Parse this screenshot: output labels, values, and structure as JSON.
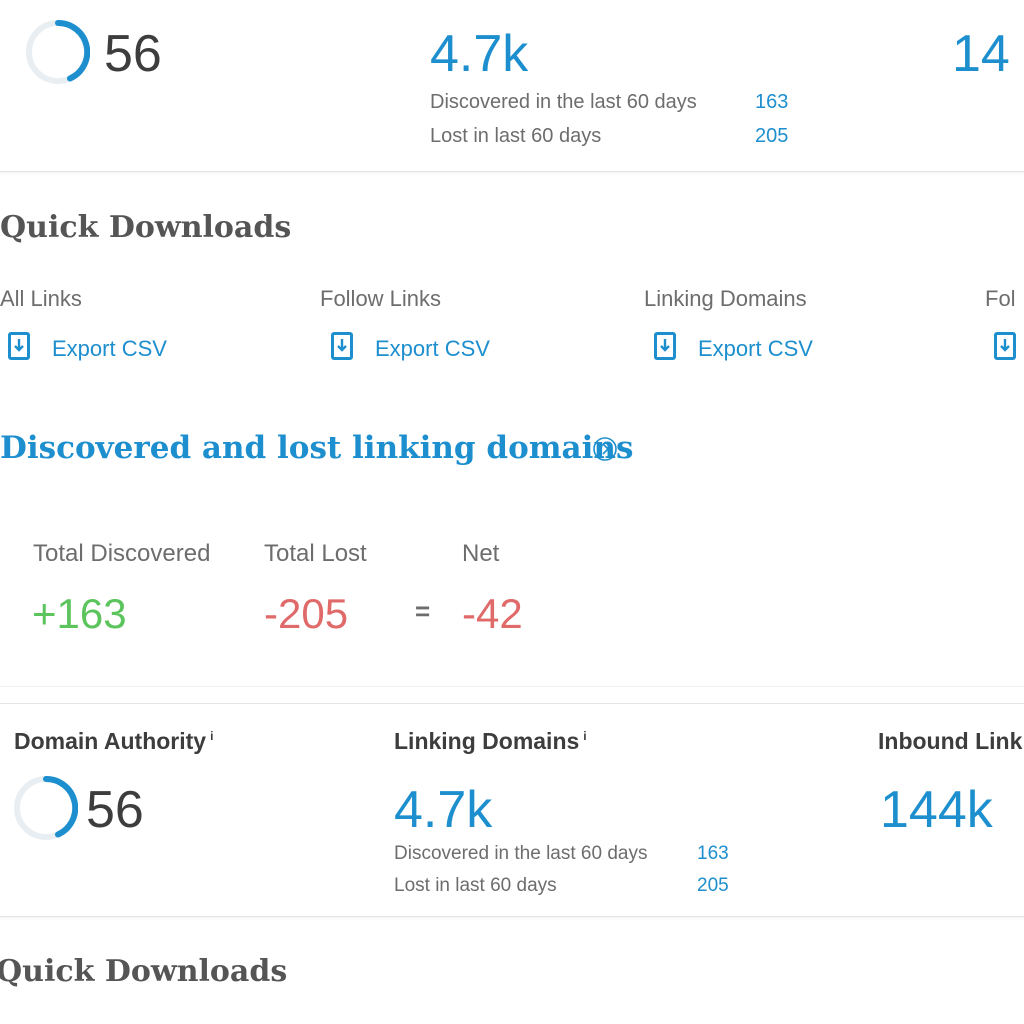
{
  "top_card": {
    "domain_authority_value": "56",
    "linking_domains_value": "4.7k",
    "discovered_label": "Discovered in the last 60 days",
    "discovered_value": "163",
    "lost_label": "Lost in last 60 days",
    "lost_value": "205",
    "inbound_links_value_partial": "14",
    "domain_authority_fraction": 0.56
  },
  "quick_downloads": {
    "title": "Quick Downloads",
    "items": [
      {
        "label": "All Links",
        "action": "Export CSV"
      },
      {
        "label": "Follow Links",
        "action": "Export CSV"
      },
      {
        "label": "Linking Domains",
        "action": "Export CSV"
      },
      {
        "label": "Fol",
        "action": ""
      }
    ]
  },
  "discovered_lost": {
    "title": "Discovered and lost linking domains",
    "info_icon": "chevron-circle-icon",
    "total_discovered_label": "Total Discovered",
    "total_discovered_value": "+163",
    "total_lost_label": "Total Lost",
    "total_lost_value": "-205",
    "equals": "=",
    "net_label": "Net",
    "net_value": "-42"
  },
  "bottom_card": {
    "domain_authority_label": "Domain Authority",
    "domain_authority_info": "i",
    "domain_authority_value": "56",
    "linking_domains_label": "Linking Domains",
    "linking_domains_info": "i",
    "linking_domains_value": "4.7k",
    "discovered_label": "Discovered in the last 60 days",
    "discovered_value": "163",
    "lost_label": "Lost in last 60 days",
    "lost_value": "205",
    "inbound_links_label": "Inbound Link",
    "inbound_links_value": "144k",
    "domain_authority_fraction": 0.56
  },
  "bottom_quick_downloads": {
    "title": "Quick Downloads"
  },
  "colors": {
    "accent": "#1d8fce",
    "positive": "#5cc45c",
    "negative": "#e06a6a",
    "gauge_track": "#e9eef2"
  }
}
